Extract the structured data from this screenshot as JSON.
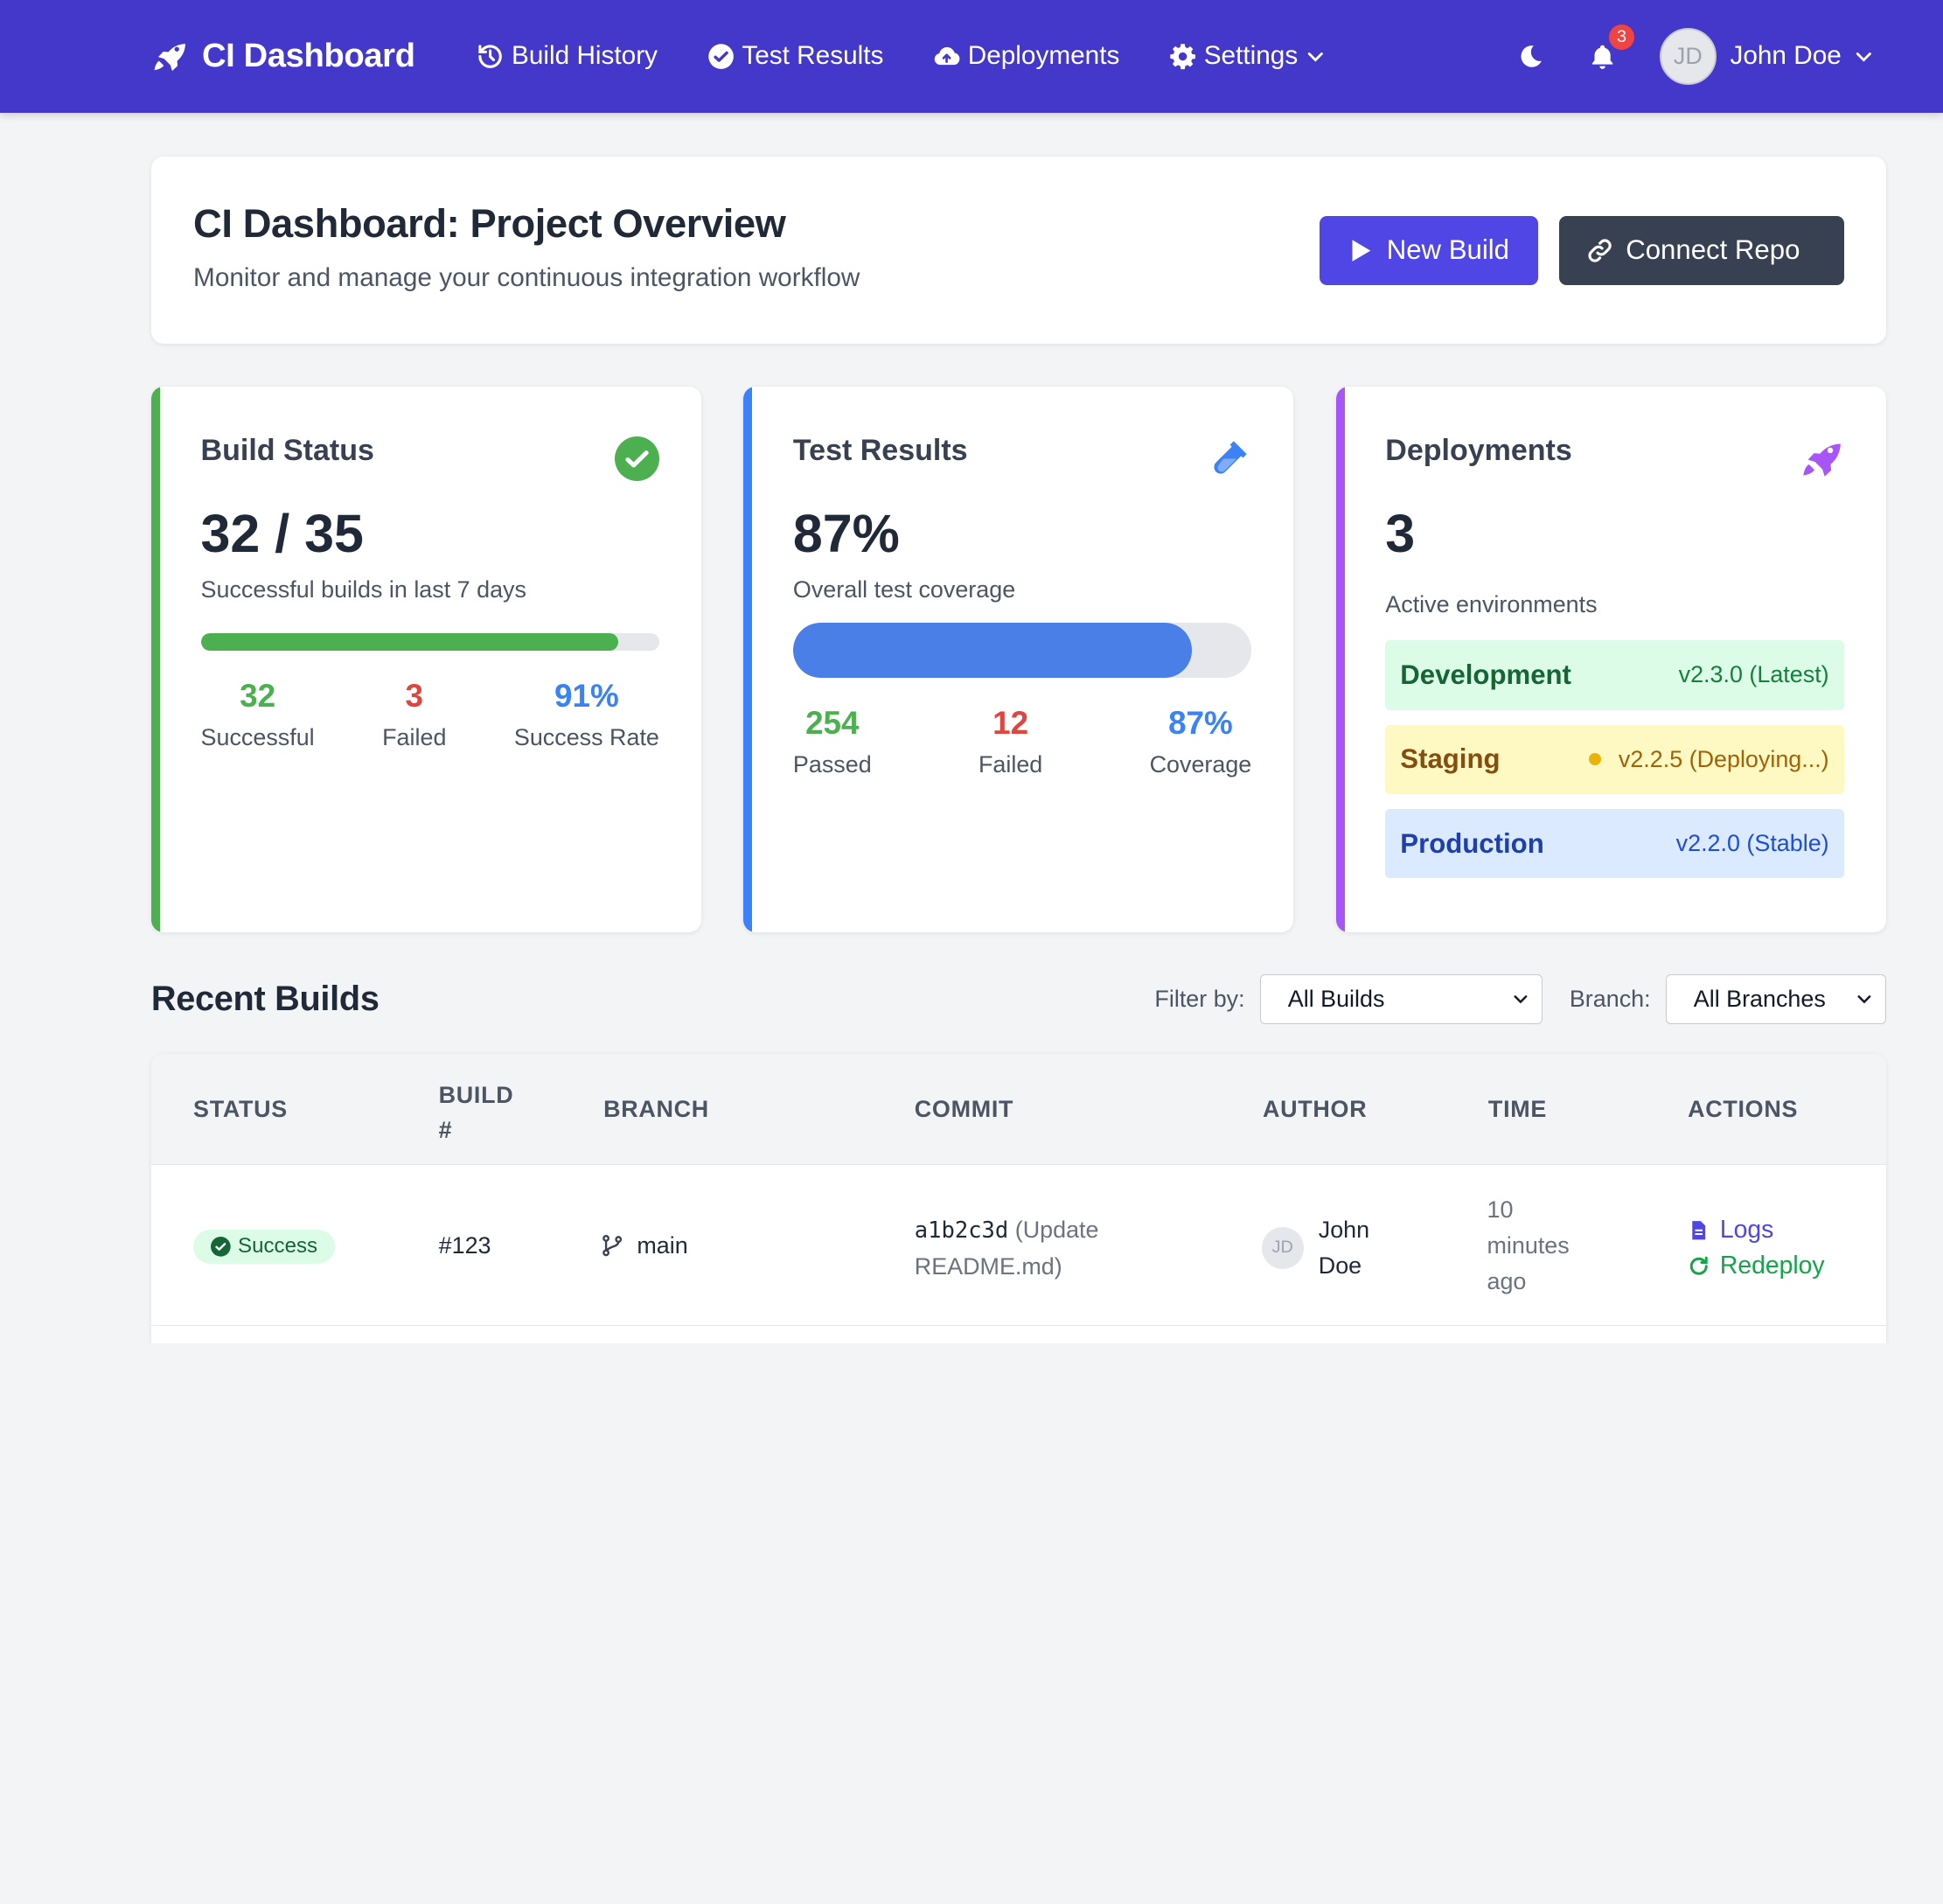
{
  "nav": {
    "brand": "CI Dashboard",
    "links": [
      {
        "label": "Build History"
      },
      {
        "label": "Test Results"
      },
      {
        "label": "Deployments"
      },
      {
        "label": "Settings"
      }
    ],
    "notification_count": "3",
    "user_initials": "JD",
    "user_name": "John Doe"
  },
  "header": {
    "title": "CI Dashboard: Project Overview",
    "subtitle": "Monitor and manage your continuous integration workflow",
    "new_build_label": "New Build",
    "connect_repo_label": "Connect Repo"
  },
  "build_status": {
    "title": "Build Status",
    "big": "32 / 35",
    "caption": "Successful builds in last 7 days",
    "progress": 0.91,
    "stats": [
      {
        "value": "32",
        "label": "Successful"
      },
      {
        "value": "3",
        "label": "Failed"
      },
      {
        "value": "91%",
        "label": "Success Rate"
      }
    ]
  },
  "test_results": {
    "title": "Test Results",
    "big": "87%",
    "caption": "Overall test coverage",
    "progress": 0.87,
    "stats": [
      {
        "value": "254",
        "label": "Passed"
      },
      {
        "value": "12",
        "label": "Failed"
      },
      {
        "value": "87%",
        "label": "Coverage"
      }
    ]
  },
  "deployments": {
    "title": "Deployments",
    "big": "3",
    "caption": "Active environments",
    "envs": [
      {
        "name": "Development",
        "version": "v2.3.0 (Latest)"
      },
      {
        "name": "Staging",
        "version": "v2.2.5 (Deploying...)"
      },
      {
        "name": "Production",
        "version": "v2.2.0 (Stable)"
      }
    ]
  },
  "recent_builds": {
    "title": "Recent Builds",
    "filter_label": "Filter by:",
    "filter_value": "All Builds",
    "branch_label": "Branch:",
    "branch_value": "All Branches",
    "columns": {
      "status": "STATUS",
      "build_line1": "BUILD",
      "build_line2": "#",
      "branch": "BRANCH",
      "commit": "COMMIT",
      "author": "AUTHOR",
      "time": "TIME",
      "actions": "ACTIONS"
    },
    "rows": [
      {
        "status": "Success",
        "build": "#123",
        "branch": "main",
        "commit_hash": "a1b2c3d",
        "commit_msg_1": "(Update",
        "commit_msg_2": "README.md)",
        "author_initials": "JD",
        "author_first": "John",
        "author_last": "Doe",
        "time_1": "10",
        "time_2": "minutes",
        "time_3": "ago",
        "action_logs": "Logs",
        "action_redeploy": "Redeploy"
      }
    ]
  }
}
